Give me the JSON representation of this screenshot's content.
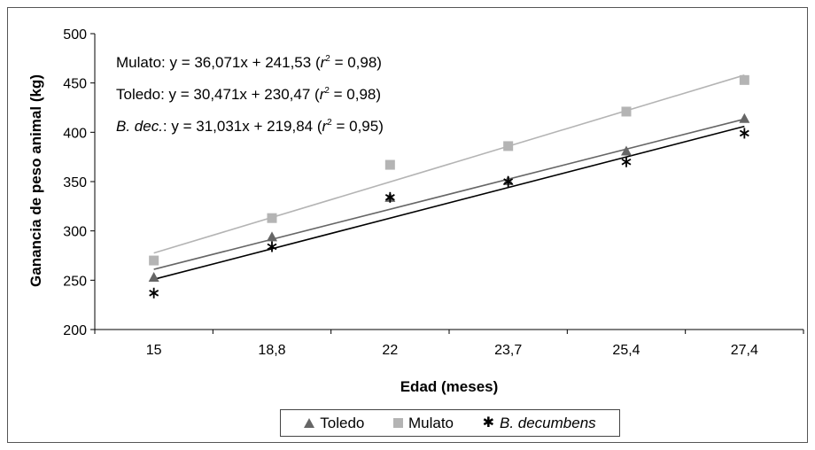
{
  "chart_data": {
    "type": "scatter",
    "title": "",
    "xlabel": "Edad (meses)",
    "ylabel": "Ganancia de peso animal (kg)",
    "categories": [
      "15",
      "18,8",
      "22",
      "23,7",
      "25,4",
      "27,4"
    ],
    "ylim": [
      200,
      500
    ],
    "yticks": [
      "200",
      "250",
      "300",
      "350",
      "400",
      "450",
      "500"
    ],
    "grid": false,
    "legend_position": "bottom",
    "series": [
      {
        "name": "Toledo",
        "marker": "triangle",
        "color": "#666666",
        "values": [
          253,
          294,
          334,
          351,
          381,
          414
        ],
        "trend": [
          261,
          291.5,
          322,
          352.4,
          382.9,
          413.4
        ]
      },
      {
        "name": "Mulato",
        "marker": "square",
        "color": "#b4b4b4",
        "values": [
          270,
          313,
          367,
          386,
          421,
          453
        ],
        "trend": [
          277.6,
          313.7,
          349.7,
          385.8,
          421.9,
          457.96
        ]
      },
      {
        "name": "B. decumbens",
        "marker": "asterisk",
        "color": "#000000",
        "values": [
          237,
          284,
          334,
          350,
          370,
          399
        ],
        "trend": [
          250.9,
          281.9,
          312.9,
          343.9,
          375.0,
          406.0
        ]
      }
    ],
    "annotations": [
      {
        "prefix": "Mulato",
        "text": ": y = 36,071x + 241,53 (",
        "r": "r",
        "sup": "2",
        "tail": " = 0,98)"
      },
      {
        "prefix": "Toledo",
        "text": ": y = 30,471x + 230,47 (",
        "r": "r",
        "sup": "2",
        "tail": " = 0,98)"
      },
      {
        "prefix": "B. dec.",
        "text": ": y = 31,031x + 219,84 (",
        "r": "r",
        "sup": "2",
        "tail": " = 0,95)"
      }
    ]
  }
}
